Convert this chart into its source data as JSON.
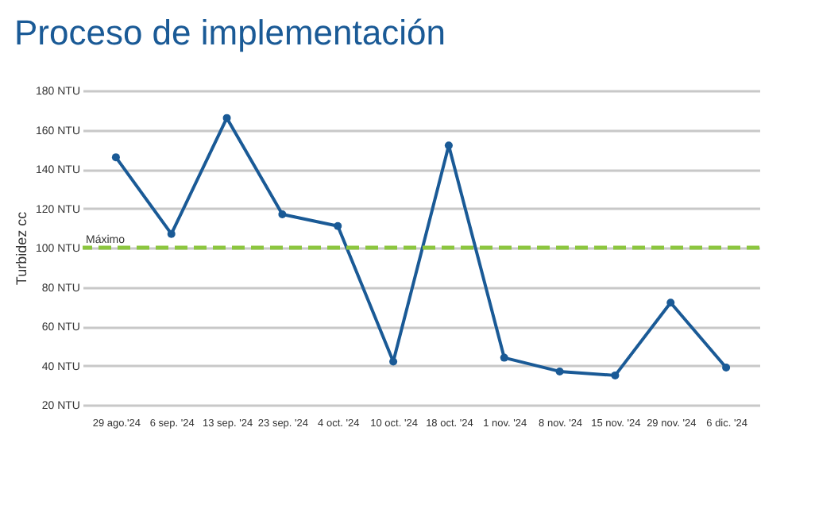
{
  "chart_data": {
    "type": "line",
    "title": "Proceso de implementación",
    "ylabel": "Turbidez cc",
    "categories": [
      "29 ago.'24",
      "6 sep. '24",
      "13 sep. '24",
      "23 sep. '24",
      "4 oct. '24",
      "10 oct. '24",
      "18 oct. '24",
      "1 nov. '24",
      "8 nov. '24",
      "15 nov. '24",
      "29 nov. '24",
      "6 dic. '24"
    ],
    "series": [
      {
        "color": "#1a5a96",
        "values": [
          146,
          107,
          166,
          117,
          111,
          42,
          152,
          44,
          37,
          35,
          72,
          39
        ]
      }
    ],
    "ylim": [
      20,
      180
    ],
    "yticks": [
      {
        "value": 20,
        "label": "20 NTU"
      },
      {
        "value": 40,
        "label": "40 NTU"
      },
      {
        "value": 60,
        "label": "60 NTU"
      },
      {
        "value": 80,
        "label": "80 NTU"
      },
      {
        "value": 100,
        "label": "100 NTU"
      },
      {
        "value": 120,
        "label": "120 NTU"
      },
      {
        "value": 140,
        "label": "140 NTU"
      },
      {
        "value": 160,
        "label": "160 NTU"
      },
      {
        "value": 180,
        "label": "180 NTU"
      }
    ],
    "ref_lines": [
      {
        "axis": "y",
        "value": 100,
        "label": "Máximo",
        "color": "#8cc63f",
        "line_style": "dashed"
      }
    ],
    "grid": "y",
    "marker": "circle",
    "line_style": "solid"
  }
}
